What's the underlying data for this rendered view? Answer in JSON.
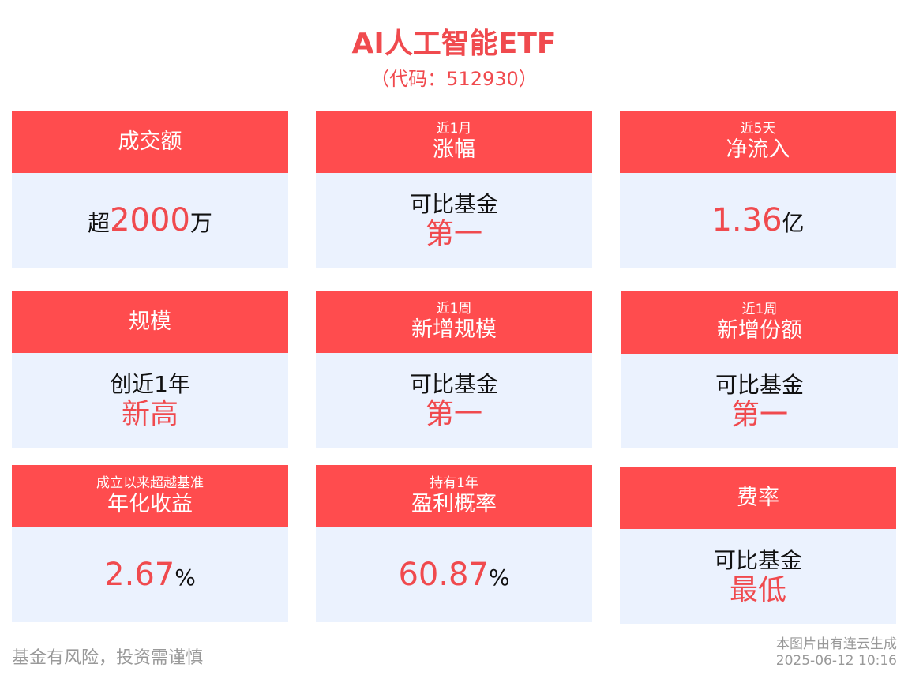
{
  "title": "AI人工智能ETF",
  "subtitle": "（代码：512930）",
  "cards": [
    {
      "small": "",
      "main": "成交额",
      "prefix": "超",
      "value": "2000",
      "suffix": "万"
    },
    {
      "small": "近1月",
      "main": "涨幅",
      "line1": "可比基金",
      "line2": "第一"
    },
    {
      "small": "近5天",
      "main": "净流入",
      "prefix": "",
      "value": "1.36",
      "suffix": "亿"
    },
    {
      "small": "",
      "main": "规模",
      "line1": "创近1年",
      "line2": "新高"
    },
    {
      "small": "近1周",
      "main": "新增规模",
      "line1": "可比基金",
      "line2": "第一"
    },
    {
      "small": "近1周",
      "main": "新增份额",
      "line1": "可比基金",
      "line2": "第一"
    },
    {
      "small": "成立以来超越基准",
      "main": "年化收益",
      "prefix": "",
      "value": "2.67",
      "suffix": "%"
    },
    {
      "small": "持有1年",
      "main": "盈利概率",
      "prefix": "",
      "value": "60.87",
      "suffix": "%"
    },
    {
      "small": "",
      "main": "费率",
      "line1": "可比基金",
      "line2": "最低"
    }
  ],
  "footer": {
    "risk": "基金有风险，投资需谨慎",
    "generated": "本图片由有连云生成",
    "timestamp": "2025-06-12 10:16"
  },
  "colors": {
    "accent": "#ff4c4e",
    "body": "#ebf2fe"
  }
}
